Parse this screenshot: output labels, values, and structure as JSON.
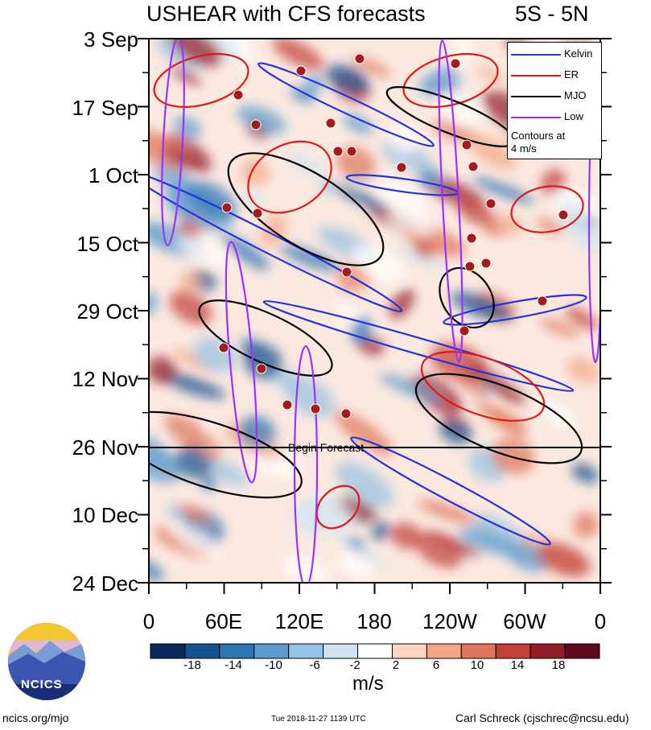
{
  "header": {
    "title": "USHEAR with CFS forecasts",
    "region": "5S - 5N"
  },
  "chart_data": {
    "type": "heatmap",
    "title": "USHEAR with CFS forecasts",
    "subtitle": "5S - 5N",
    "x_tick_labels": [
      "0",
      "60E",
      "120E",
      "180",
      "120W",
      "60W",
      "0"
    ],
    "x_ticks_deg_east": [
      0,
      60,
      120,
      180,
      240,
      300,
      360
    ],
    "y_tick_labels": [
      "3 Sep",
      "17 Sep",
      "1 Oct",
      "15 Oct",
      "29 Oct",
      "12 Nov",
      "26 Nov",
      "10 Dec",
      "24 Dec"
    ],
    "y_range": [
      "3 Sep",
      "24 Dec"
    ],
    "colorbar": {
      "units": "m/s",
      "tick_labels": [
        "-18",
        "-14",
        "-10",
        "-6",
        "-2",
        "2",
        "6",
        "10",
        "14",
        "18"
      ],
      "colors": [
        "#0a2a5c",
        "#15508f",
        "#2d74b5",
        "#5a9ccf",
        "#95c2e2",
        "#cfe4f1",
        "#ffffff",
        "#fbd5c2",
        "#f3a787",
        "#e07559",
        "#c23f38",
        "#941c27",
        "#5e0a1a"
      ]
    },
    "legend": {
      "placement": "top-right",
      "entries": [
        {
          "label": "Kelvin",
          "color": "#2233dd"
        },
        {
          "label": "ER",
          "color": "#e01818"
        },
        {
          "label": "MJO",
          "color": "#000000"
        },
        {
          "label": "Low",
          "color": "#9b30ff"
        }
      ],
      "note": [
        "Contours at",
        "4 m/s"
      ]
    },
    "annotations": [
      "Begin Forecast"
    ],
    "forecast_start": "26 Nov"
  },
  "footer": {
    "site": "ncics.org/mjo",
    "timestamp": "Tue 2018-11-27 1139 UTC",
    "author": "Carl Schreck (cjschrec@ncsu.edu)",
    "logo_text": "NCICS"
  }
}
